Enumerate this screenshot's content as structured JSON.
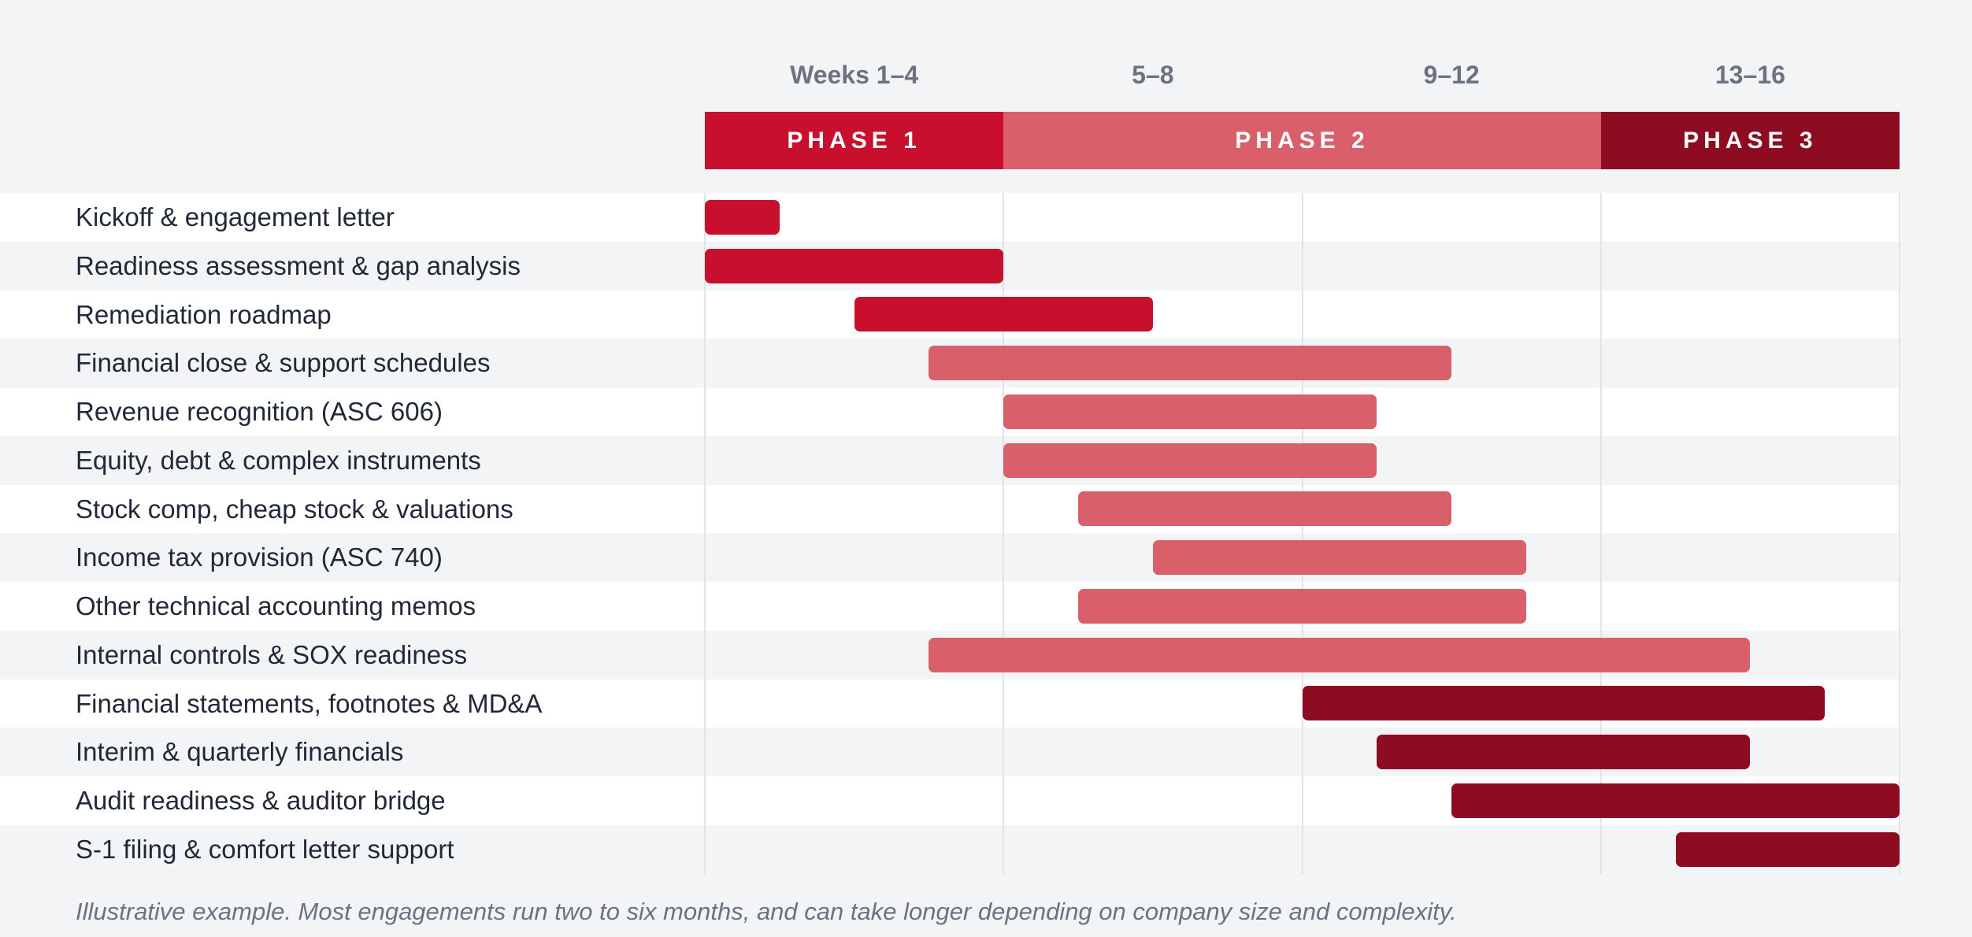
{
  "chart_data": {
    "type": "gantt",
    "x_unit": "weeks",
    "x_range": [
      0,
      16
    ],
    "week_columns": [
      "Weeks 1–4",
      "5–8",
      "9–12",
      "13–16"
    ],
    "phases": [
      {
        "name": "PHASE 1",
        "start": 0,
        "end": 4,
        "color": "#c8102e"
      },
      {
        "name": "PHASE 2",
        "start": 4,
        "end": 12,
        "color": "#d9606b"
      },
      {
        "name": "PHASE 3",
        "start": 12,
        "end": 16,
        "color": "#8e0c21"
      }
    ],
    "tasks": [
      {
        "label": "Kickoff & engagement letter",
        "start": 0,
        "end": 1,
        "phase": 0
      },
      {
        "label": "Readiness assessment & gap analysis",
        "start": 0,
        "end": 4,
        "phase": 0
      },
      {
        "label": "Remediation roadmap",
        "start": 2,
        "end": 6,
        "phase": 0
      },
      {
        "label": "Financial close & support schedules",
        "start": 3,
        "end": 10,
        "phase": 1
      },
      {
        "label": "Revenue recognition (ASC 606)",
        "start": 4,
        "end": 9,
        "phase": 1
      },
      {
        "label": "Equity, debt & complex instruments",
        "start": 4,
        "end": 9,
        "phase": 1
      },
      {
        "label": "Stock comp, cheap stock & valuations",
        "start": 5,
        "end": 10,
        "phase": 1
      },
      {
        "label": "Income tax provision (ASC 740)",
        "start": 6,
        "end": 11,
        "phase": 1
      },
      {
        "label": "Other technical accounting memos",
        "start": 5,
        "end": 11,
        "phase": 1
      },
      {
        "label": "Internal controls & SOX readiness",
        "start": 3,
        "end": 14,
        "phase": 1
      },
      {
        "label": "Financial statements, footnotes & MD&A",
        "start": 8,
        "end": 15,
        "phase": 2
      },
      {
        "label": "Interim & quarterly financials",
        "start": 9,
        "end": 14,
        "phase": 2
      },
      {
        "label": "Audit readiness & auditor bridge",
        "start": 10,
        "end": 16,
        "phase": 2
      },
      {
        "label": "S-1 filing & comfort letter support",
        "start": 13,
        "end": 16,
        "phase": 2
      }
    ],
    "footnote": "Illustrative example. Most engagements run two to six months, and can take longer depending on company size and complexity."
  }
}
